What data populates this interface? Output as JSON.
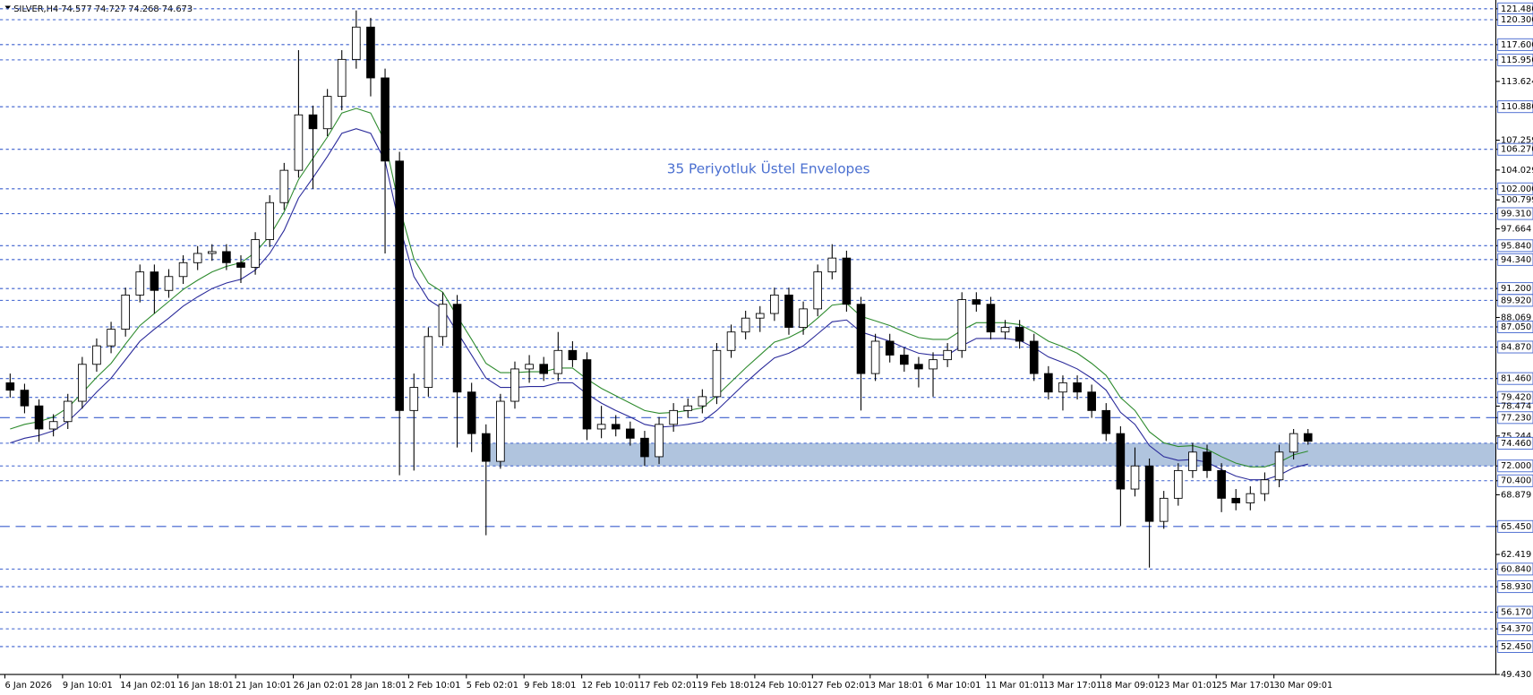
{
  "chart_data": {
    "type": "candlestick",
    "title": "SILVER,H4  74.577 74.727 74.268 74.673",
    "annotation": "35 Periyotluk Üstel Envelopes",
    "ylim": [
      49.43,
      121.48
    ],
    "yticks": [
      {
        "value": 121.48,
        "label": "121.480",
        "line": "dotted"
      },
      {
        "value": 120.3,
        "label": "120.300",
        "line": "dotted"
      },
      {
        "value": 117.6,
        "label": "117.600",
        "line": "dotted"
      },
      {
        "value": 115.95,
        "label": "115.950",
        "line": "dotted"
      },
      {
        "value": 113.624,
        "label": "113.624"
      },
      {
        "value": 110.88,
        "label": "110.880",
        "line": "dotted"
      },
      {
        "value": 107.259,
        "label": "107.259"
      },
      {
        "value": 106.27,
        "label": "106.270",
        "line": "dotted"
      },
      {
        "value": 104.029,
        "label": "104.029"
      },
      {
        "value": 102.0,
        "label": "102.000",
        "line": "dotted"
      },
      {
        "value": 100.799,
        "label": "100.799"
      },
      {
        "value": 99.31,
        "label": "99.310",
        "line": "dotted"
      },
      {
        "value": 97.664,
        "label": "97.664"
      },
      {
        "value": 95.84,
        "label": "95.840",
        "line": "dotted"
      },
      {
        "value": 94.34,
        "label": "94.340",
        "line": "dotted"
      },
      {
        "value": 91.2,
        "label": "91.200",
        "line": "dotted"
      },
      {
        "value": 89.92,
        "label": "89.920",
        "line": "dotted"
      },
      {
        "value": 88.069,
        "label": "88.069"
      },
      {
        "value": 87.05,
        "label": "87.050",
        "line": "dotted"
      },
      {
        "value": 84.87,
        "label": "84.870",
        "line": "dotted"
      },
      {
        "value": 81.46,
        "label": "81.460",
        "line": "dotted"
      },
      {
        "value": 79.42,
        "label": "79.420",
        "line": "dotted"
      },
      {
        "value": 78.474,
        "label": "78.474"
      },
      {
        "value": 77.23,
        "label": "77.230",
        "line": "dashed"
      },
      {
        "value": 75.244,
        "label": "75.244"
      },
      {
        "value": 74.46,
        "label": "74.460",
        "line": "dotted"
      },
      {
        "value": 72.0,
        "label": "72.000",
        "line": "dotted"
      },
      {
        "value": 70.4,
        "label": "70.400",
        "line": "dotted"
      },
      {
        "value": 68.879,
        "label": "68.879"
      },
      {
        "value": 65.45,
        "label": "65.450",
        "line": "dashed"
      },
      {
        "value": 62.419,
        "label": "62.419"
      },
      {
        "value": 60.84,
        "label": "60.840",
        "line": "dotted"
      },
      {
        "value": 58.93,
        "label": "58.930",
        "line": "dotted"
      },
      {
        "value": 56.17,
        "label": "56.170",
        "line": "dotted"
      },
      {
        "value": 54.37,
        "label": "54.370",
        "line": "dotted"
      },
      {
        "value": 52.45,
        "label": "52.450",
        "line": "dotted"
      },
      {
        "value": 49.43,
        "label": "49.430"
      }
    ],
    "zone": [
      72.0,
      74.46
    ],
    "zone_color": "#b0c4de",
    "categories": [
      "6 Jan 2026",
      null,
      null,
      null,
      "9 Jan 10:01",
      null,
      null,
      null,
      "14 Jan 02:01",
      null,
      null,
      null,
      "16 Jan 18:01",
      null,
      null,
      null,
      "21 Jan 10:01",
      null,
      null,
      null,
      "26 Jan 02:01",
      null,
      null,
      null,
      "28 Jan 18:01",
      null,
      null,
      null,
      "2 Feb 10:01",
      null,
      null,
      null,
      "5 Feb 02:01",
      null,
      null,
      null,
      "9 Feb 18:01",
      null,
      null,
      null,
      "12 Feb 10:01",
      null,
      null,
      null,
      "17 Feb 02:01",
      null,
      null,
      null,
      "19 Feb 18:01",
      null,
      null,
      null,
      "24 Feb 10:01",
      null,
      null,
      null,
      "27 Feb 02:01",
      null,
      null,
      null,
      "3 Mar 18:01",
      null,
      null,
      null,
      "6 Mar 10:01",
      null,
      null,
      null,
      "11 Mar 01:01",
      null,
      null,
      null,
      "13 Mar 17:01",
      null,
      null,
      null,
      "18 Mar 09:01",
      null,
      null,
      null,
      "23 Mar 01:01",
      null,
      null,
      null,
      "25 Mar 17:01",
      null,
      null,
      null,
      "30 Mar 09:01",
      null,
      null
    ],
    "candles": [
      [
        81.0,
        82.0,
        79.4,
        80.2
      ],
      [
        80.2,
        80.9,
        77.7,
        78.5
      ],
      [
        78.5,
        79.2,
        74.6,
        76.0
      ],
      [
        76.0,
        77.6,
        75.2,
        76.8
      ],
      [
        76.8,
        79.8,
        76.0,
        79.0
      ],
      [
        79.0,
        83.8,
        78.2,
        83.0
      ],
      [
        83.0,
        85.8,
        82.2,
        85.0
      ],
      [
        85.0,
        87.6,
        84.2,
        86.8
      ],
      [
        86.8,
        91.3,
        86.0,
        90.5
      ],
      [
        90.5,
        93.8,
        89.7,
        93.0
      ],
      [
        93.0,
        93.8,
        88.5,
        91.0
      ],
      [
        91.0,
        93.3,
        90.2,
        92.5
      ],
      [
        92.5,
        94.8,
        91.7,
        94.0
      ],
      [
        94.0,
        95.8,
        93.2,
        95.0
      ],
      [
        95.0,
        96.0,
        94.2,
        95.2
      ],
      [
        95.2,
        96.0,
        93.2,
        94.0
      ],
      [
        94.0,
        94.8,
        91.8,
        93.5
      ],
      [
        93.5,
        97.3,
        92.7,
        96.5
      ],
      [
        96.5,
        101.3,
        95.7,
        100.5
      ],
      [
        100.5,
        104.8,
        99.7,
        104.0
      ],
      [
        104.0,
        117.0,
        103.2,
        110.0
      ],
      [
        110.0,
        111.0,
        102.0,
        108.5
      ],
      [
        108.5,
        112.8,
        107.7,
        112.0
      ],
      [
        112.0,
        117.0,
        110.5,
        116.0
      ],
      [
        116.0,
        121.3,
        115.0,
        119.5
      ],
      [
        119.5,
        120.5,
        112.0,
        114.0
      ],
      [
        114.0,
        115.0,
        95.0,
        105.0
      ],
      [
        105.0,
        106.0,
        71.0,
        78.0
      ],
      [
        78.0,
        82.0,
        71.5,
        80.5
      ],
      [
        80.5,
        87.0,
        79.5,
        86.0
      ],
      [
        86.0,
        90.8,
        85.0,
        89.5
      ],
      [
        89.5,
        90.5,
        74.0,
        80.0
      ],
      [
        80.0,
        81.0,
        73.5,
        75.5
      ],
      [
        75.5,
        76.5,
        64.5,
        72.5
      ],
      [
        72.5,
        79.8,
        71.7,
        79.0
      ],
      [
        79.0,
        83.3,
        78.2,
        82.5
      ],
      [
        82.5,
        84.0,
        81.0,
        83.0
      ],
      [
        83.0,
        83.8,
        81.2,
        82.0
      ],
      [
        82.0,
        86.5,
        81.2,
        84.5
      ],
      [
        84.5,
        85.5,
        82.7,
        83.5
      ],
      [
        83.5,
        84.3,
        74.8,
        76.0
      ],
      [
        76.0,
        78.5,
        75.0,
        76.5
      ],
      [
        76.5,
        77.5,
        75.2,
        76.0
      ],
      [
        76.0,
        76.8,
        74.2,
        75.0
      ],
      [
        75.0,
        75.8,
        72.0,
        73.0
      ],
      [
        73.0,
        77.3,
        72.2,
        76.5
      ],
      [
        76.5,
        78.8,
        75.7,
        78.0
      ],
      [
        78.0,
        79.3,
        77.2,
        78.5
      ],
      [
        78.5,
        80.3,
        77.7,
        79.5
      ],
      [
        79.5,
        85.3,
        78.7,
        84.5
      ],
      [
        84.5,
        87.3,
        83.7,
        86.5
      ],
      [
        86.5,
        88.8,
        85.7,
        88.0
      ],
      [
        88.0,
        89.3,
        86.5,
        88.5
      ],
      [
        88.5,
        91.3,
        87.7,
        90.5
      ],
      [
        90.5,
        91.3,
        86.2,
        87.0
      ],
      [
        87.0,
        89.8,
        86.2,
        89.0
      ],
      [
        89.0,
        93.8,
        88.2,
        93.0
      ],
      [
        93.0,
        96.0,
        92.2,
        94.5
      ],
      [
        94.5,
        95.3,
        88.7,
        89.5
      ],
      [
        89.5,
        90.3,
        78.0,
        82.0
      ],
      [
        82.0,
        86.3,
        81.2,
        85.5
      ],
      [
        85.5,
        86.3,
        83.2,
        84.0
      ],
      [
        84.0,
        84.8,
        82.2,
        83.0
      ],
      [
        83.0,
        83.8,
        80.5,
        82.5
      ],
      [
        82.5,
        84.3,
        79.5,
        83.5
      ],
      [
        83.5,
        85.3,
        82.7,
        84.5
      ],
      [
        84.5,
        90.8,
        83.7,
        90.0
      ],
      [
        90.0,
        90.8,
        88.7,
        89.5
      ],
      [
        89.5,
        90.3,
        85.7,
        86.5
      ],
      [
        86.5,
        87.8,
        85.7,
        87.0
      ],
      [
        87.0,
        87.8,
        84.7,
        85.5
      ],
      [
        85.5,
        86.3,
        81.2,
        82.0
      ],
      [
        82.0,
        82.8,
        79.2,
        80.0
      ],
      [
        80.0,
        81.8,
        78.0,
        81.0
      ],
      [
        81.0,
        81.8,
        79.2,
        80.0
      ],
      [
        80.0,
        80.8,
        77.2,
        78.0
      ],
      [
        78.0,
        78.8,
        74.7,
        75.5
      ],
      [
        75.5,
        76.3,
        65.5,
        69.5
      ],
      [
        69.5,
        74.0,
        68.7,
        72.0
      ],
      [
        72.0,
        72.8,
        61.0,
        66.0
      ],
      [
        66.0,
        69.3,
        65.2,
        68.5
      ],
      [
        68.5,
        72.3,
        67.7,
        71.5
      ],
      [
        71.5,
        74.5,
        70.7,
        73.5
      ],
      [
        73.5,
        74.3,
        70.7,
        71.5
      ],
      [
        71.5,
        72.3,
        67.0,
        68.5
      ],
      [
        68.5,
        69.5,
        67.2,
        68.0
      ],
      [
        68.0,
        69.8,
        67.2,
        69.0
      ],
      [
        69.0,
        71.3,
        68.2,
        70.5
      ],
      [
        70.5,
        74.3,
        69.7,
        73.5
      ],
      [
        73.5,
        76.0,
        72.7,
        75.5
      ],
      [
        75.5,
        76.0,
        74.3,
        74.67
      ]
    ],
    "series": [
      {
        "color": "#2e8b2e",
        "values": [
          76.0,
          76.5,
          76.8,
          77.3,
          78.3,
          79.9,
          81.6,
          83.1,
          85.2,
          87.2,
          88.5,
          89.8,
          91.1,
          92.1,
          93.0,
          93.6,
          94.0,
          95.1,
          96.9,
          99.5,
          103.0,
          105.3,
          107.6,
          110.2,
          110.7,
          110.2,
          107.1,
          100.0,
          94.4,
          91.8,
          90.8,
          88.2,
          85.7,
          83.1,
          82.1,
          82.1,
          82.2,
          82.2,
          82.6,
          82.6,
          81.4,
          80.4,
          79.6,
          78.8,
          78.0,
          77.7,
          77.8,
          78.0,
          78.3,
          79.6,
          81.1,
          82.6,
          84.0,
          85.4,
          85.9,
          86.7,
          88.0,
          89.4,
          89.6,
          88.2,
          87.7,
          87.2,
          86.5,
          85.9,
          85.7,
          85.7,
          86.7,
          87.5,
          87.5,
          87.5,
          87.3,
          86.5,
          85.5,
          84.9,
          84.2,
          83.1,
          81.8,
          79.4,
          78.0,
          75.7,
          74.5,
          74.1,
          74.2,
          73.8,
          73.0,
          72.3,
          71.9,
          71.9,
          72.4,
          73.2,
          73.6
        ]
      },
      {
        "color": "#2a2a9a",
        "values": [
          74.5,
          75.0,
          75.3,
          75.8,
          76.8,
          78.3,
          80.0,
          81.5,
          83.5,
          85.5,
          86.8,
          88.0,
          89.3,
          90.3,
          91.2,
          91.8,
          92.2,
          93.2,
          95.0,
          97.5,
          101.0,
          103.2,
          105.5,
          108.0,
          108.5,
          108.0,
          105.0,
          98.0,
          92.5,
          90.0,
          89.0,
          86.5,
          84.0,
          81.5,
          80.5,
          80.5,
          80.6,
          80.6,
          81.0,
          81.0,
          79.8,
          78.8,
          78.0,
          77.3,
          76.5,
          76.2,
          76.3,
          76.5,
          76.8,
          78.0,
          79.5,
          81.0,
          82.4,
          83.7,
          84.2,
          85.0,
          86.3,
          87.6,
          87.8,
          86.5,
          86.0,
          85.5,
          84.8,
          84.2,
          84.0,
          84.0,
          85.0,
          85.8,
          85.8,
          85.8,
          85.6,
          84.8,
          83.8,
          83.2,
          82.5,
          81.5,
          80.2,
          77.8,
          76.5,
          74.2,
          73.0,
          72.6,
          72.7,
          72.4,
          71.6,
          70.9,
          70.5,
          70.5,
          71.0,
          71.8,
          72.2
        ]
      }
    ],
    "level_color": "#3a5fcd"
  }
}
